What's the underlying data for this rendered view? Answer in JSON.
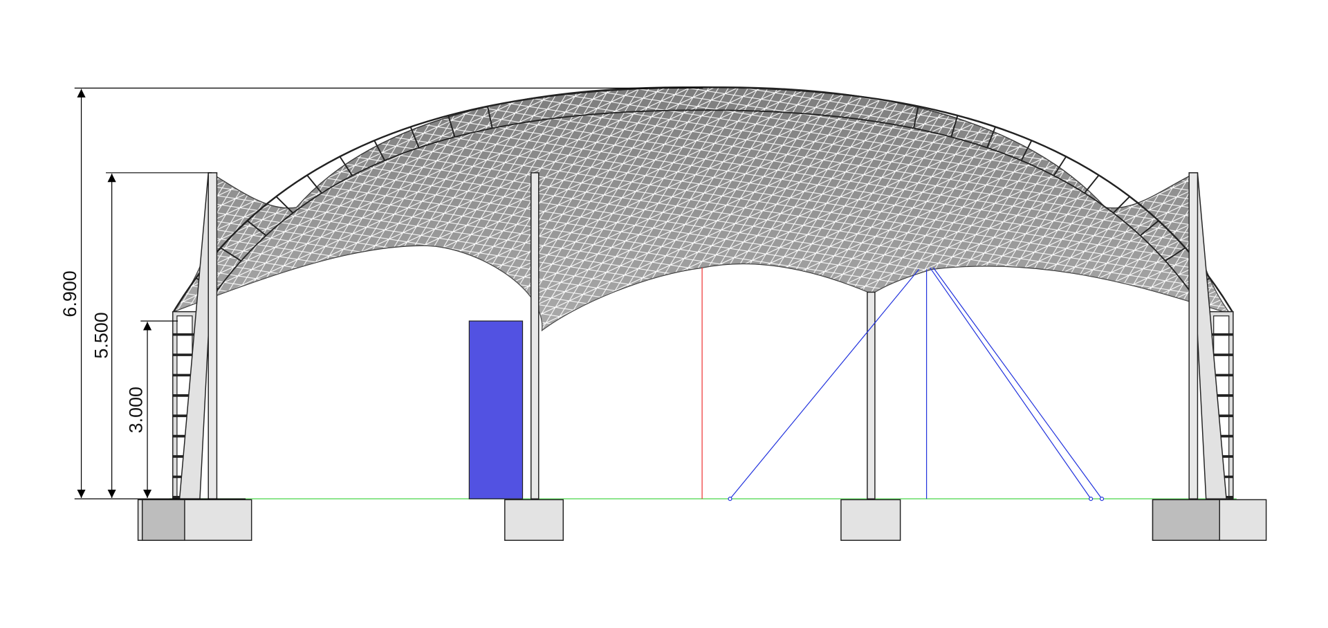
{
  "dimensions": [
    {
      "label": "6.900"
    },
    {
      "label": "5.500"
    },
    {
      "label": "3.000"
    }
  ]
}
